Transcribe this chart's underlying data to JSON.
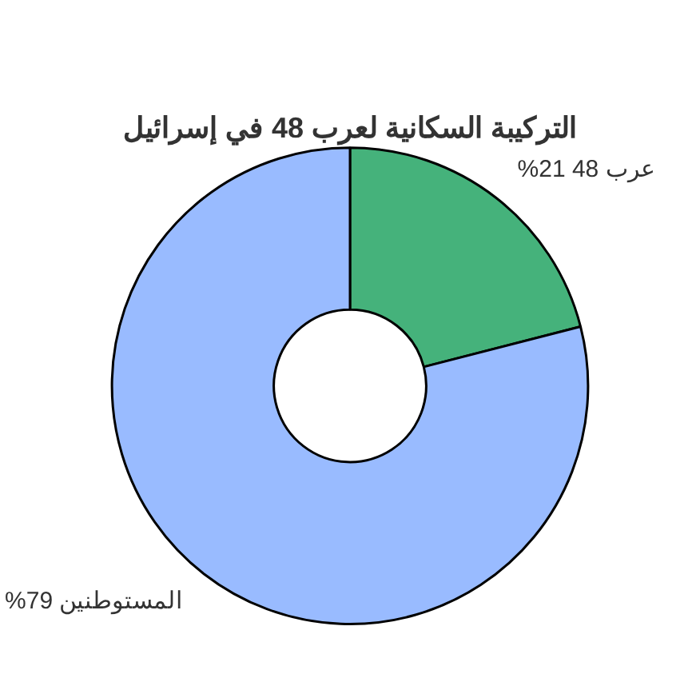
{
  "chart_data": {
    "type": "donut",
    "title": "التركيبة السكانية لعرب 48 في إسرائيل",
    "categories": [
      "عرب 48",
      "المستوطنين"
    ],
    "values": [
      21,
      79
    ],
    "colors": [
      "#45b27b",
      "#99bbff"
    ],
    "value_labels": [
      "21%",
      "79%"
    ],
    "legend": false
  }
}
